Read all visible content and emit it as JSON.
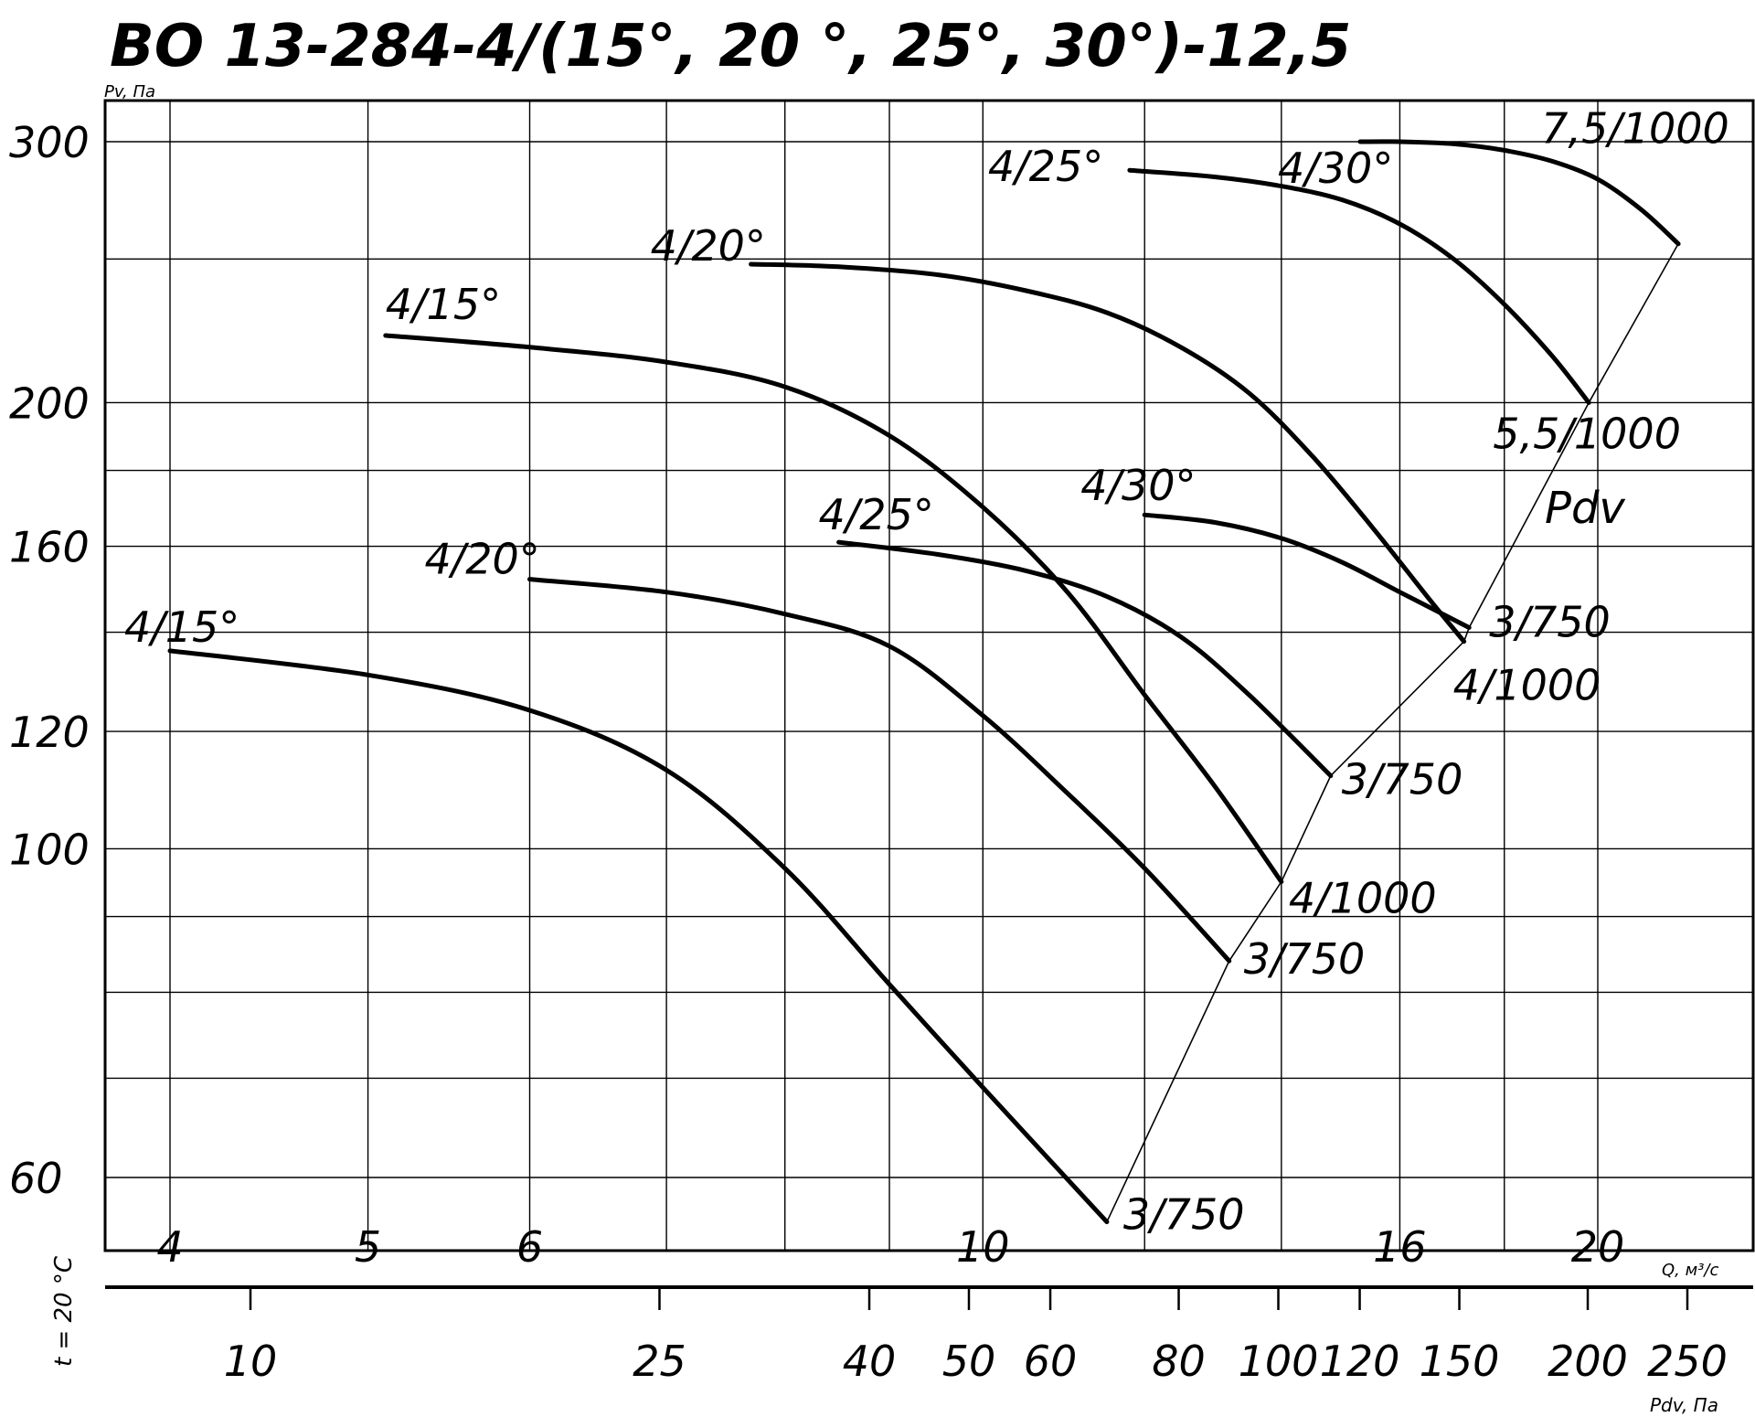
{
  "chart_data": {
    "type": "line",
    "title": "ВО 13-284-4/(15°, 20 °, 25°, 30°)-12,5",
    "ylabel": "Pv, Па",
    "xlabel": "Q, м³/с",
    "x2label": "Pdv, Па",
    "side_label": "t = 20 °C",
    "pdv_label": "Pdv",
    "x_scale": "log",
    "y_scale": "log",
    "xlim": [
      3.8,
      26
    ],
    "ylim": [
      55,
      300
    ],
    "y_ticks": [
      300,
      200,
      160,
      120,
      100,
      60
    ],
    "y_grid": [
      300,
      250,
      200,
      180,
      160,
      140,
      120,
      100,
      90,
      80,
      70,
      60
    ],
    "x_ticks": [
      4,
      5,
      6,
      10,
      16,
      20
    ],
    "x_grid": [
      4,
      5,
      6,
      7,
      8,
      9,
      10,
      12,
      14,
      16,
      18,
      20
    ],
    "pdv_ticks": [
      10,
      25,
      40,
      50,
      60,
      80,
      100,
      120,
      150,
      200,
      250
    ],
    "grid": true,
    "series": [
      {
        "name": "4/15°",
        "label": "4/15°",
        "end_label": "3/750",
        "x": [
          4,
          5,
          6,
          7,
          8,
          9,
          10,
          11.5
        ],
        "y": [
          136,
          131,
          124,
          113,
          97,
          81,
          69,
          56
        ]
      },
      {
        "name": "4/20°",
        "label": "4/20°",
        "end_label": "3/750",
        "x": [
          6,
          7,
          8,
          9,
          10,
          11,
          12,
          13.2
        ],
        "y": [
          152,
          149,
          144,
          137,
          123,
          109,
          97,
          84
        ]
      },
      {
        "name": "4/25°",
        "label": "4/25°",
        "end_label": "3/750",
        "x": [
          8.5,
          9.5,
          10.5,
          11.5,
          12.5,
          13.5,
          14.8
        ],
        "y": [
          161,
          158,
          154,
          148,
          139,
          127,
          112
        ]
      },
      {
        "name": "4/30°",
        "label": "4/30°",
        "end_label": "3/750",
        "x": [
          12,
          13,
          14,
          15,
          16,
          17.3
        ],
        "y": [
          168,
          166,
          162,
          156,
          149,
          141
        ]
      },
      {
        "name": "4/15°",
        "label": "4/15°",
        "end_label": "4/1000",
        "x": [
          5.1,
          6,
          7,
          8,
          9,
          10,
          11,
          12,
          13,
          14
        ],
        "y": [
          222,
          218,
          213,
          205,
          190,
          170,
          149,
          127,
          110,
          95
        ]
      },
      {
        "name": "4/20°",
        "label": "4/20°",
        "end_label": "4/1000",
        "x": [
          7.7,
          8.5,
          9.5,
          10.5,
          11.5,
          12.5,
          13.5,
          14.5,
          15.5,
          16.5,
          17.2
        ],
        "y": [
          248,
          247,
          244,
          238,
          230,
          218,
          203,
          184,
          165,
          148,
          138
        ]
      },
      {
        "name": "4/25°",
        "label": "4/25°",
        "end_label": "5,5/1000",
        "x": [
          11.8,
          13,
          14,
          15,
          16,
          17,
          18,
          19,
          19.8
        ],
        "y": [
          287,
          284,
          280,
          274,
          264,
          250,
          233,
          215,
          200
        ]
      },
      {
        "name": "4/30°",
        "label": "4/30°",
        "end_label": "7,5/1000",
        "x": [
          15.3,
          16,
          17,
          18,
          19,
          20,
          21,
          21.9
        ],
        "y": [
          300,
          300,
          299,
          296,
          291,
          283,
          270,
          256
        ]
      }
    ]
  }
}
